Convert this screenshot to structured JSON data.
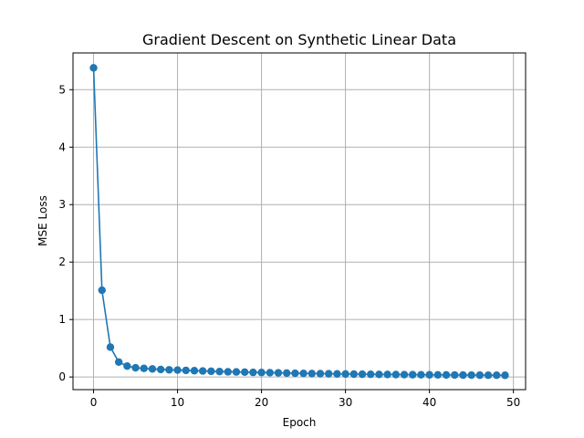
{
  "chart_data": {
    "type": "line",
    "title": "Gradient Descent on Synthetic Linear Data",
    "xlabel": "Epoch",
    "ylabel": "MSE Loss",
    "xlim": [
      -2.45,
      51.45
    ],
    "ylim": [
      -0.22,
      5.64
    ],
    "xticks": [
      0,
      10,
      20,
      30,
      40,
      50
    ],
    "yticks": [
      0,
      1,
      2,
      3,
      4,
      5
    ],
    "grid": true,
    "marker": "circle",
    "series": [
      {
        "name": "",
        "color": "#1f77b4",
        "x": [
          0,
          1,
          2,
          3,
          4,
          5,
          6,
          7,
          8,
          9,
          10,
          11,
          12,
          13,
          14,
          15,
          16,
          17,
          18,
          19,
          20,
          21,
          22,
          23,
          24,
          25,
          26,
          27,
          28,
          29,
          30,
          31,
          32,
          33,
          34,
          35,
          36,
          37,
          38,
          39,
          40,
          41,
          42,
          43,
          44,
          45,
          46,
          47,
          48,
          49
        ],
        "y": [
          5.38,
          1.51,
          0.52,
          0.26,
          0.19,
          0.16,
          0.15,
          0.14,
          0.13,
          0.125,
          0.12,
          0.115,
          0.11,
          0.105,
          0.1,
          0.095,
          0.09,
          0.088,
          0.085,
          0.08,
          0.078,
          0.075,
          0.072,
          0.068,
          0.065,
          0.063,
          0.06,
          0.058,
          0.056,
          0.054,
          0.052,
          0.05,
          0.048,
          0.047,
          0.045,
          0.044,
          0.042,
          0.041,
          0.04,
          0.039,
          0.038,
          0.037,
          0.036,
          0.035,
          0.034,
          0.033,
          0.032,
          0.031,
          0.031,
          0.03
        ]
      }
    ]
  }
}
